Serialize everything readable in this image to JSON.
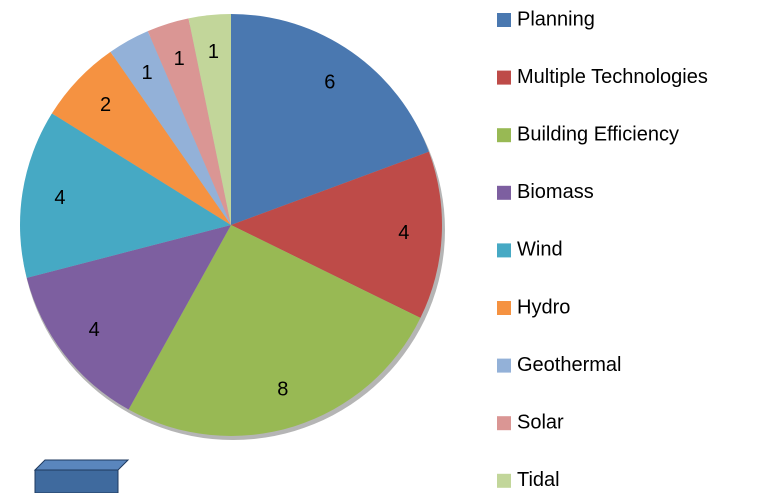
{
  "chart_data": {
    "type": "pie",
    "categories": [
      "Planning",
      "Multiple Technologies",
      "Building Efficiency",
      "Biomass",
      "Wind",
      "Hydro",
      "Geothermal",
      "Solar",
      "Tidal"
    ],
    "values": [
      6,
      4,
      8,
      4,
      4,
      2,
      1,
      1,
      1
    ],
    "colors": [
      "#4a78b0",
      "#be4b48",
      "#98b954",
      "#7d5fa0",
      "#46a9c4",
      "#f59241",
      "#93b1d8",
      "#da9694",
      "#c2d69a"
    ],
    "legend": "right"
  }
}
